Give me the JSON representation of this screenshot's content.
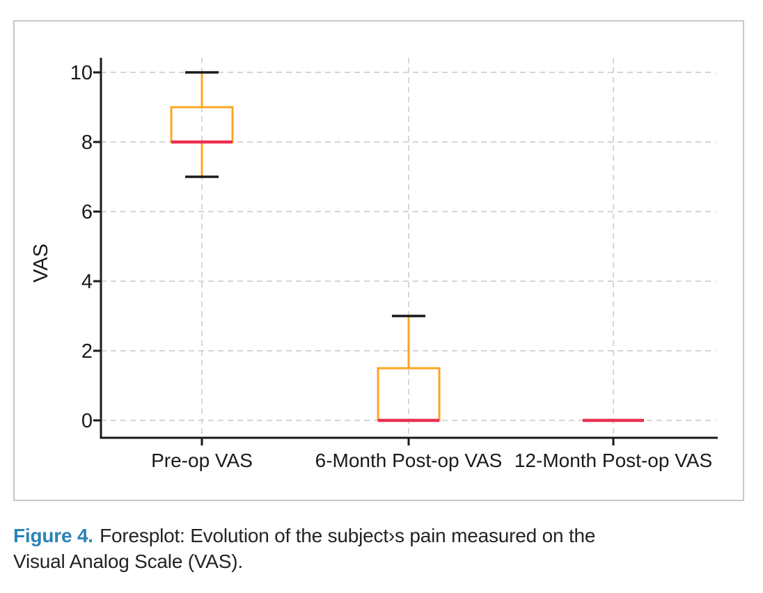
{
  "figure": {
    "caption": {
      "label": "Figure 4.",
      "line1": "Foresplot: Evolution of the subject›s pain measured on the",
      "line2": "Visual Analog Scale (VAS)."
    }
  },
  "chart_data": {
    "type": "boxplot",
    "title": "",
    "xlabel": "",
    "ylabel": "VAS",
    "yticks": [
      0,
      2,
      4,
      6,
      8,
      10
    ],
    "ylim": [
      -0.5,
      10.4
    ],
    "grid": "dashed horizontal and vertical gridlines",
    "legend": "none",
    "categories": [
      "Pre-op VAS",
      "6-Month Post-op VAS",
      "12-Month Post-op VAS"
    ],
    "series": [
      {
        "category": "Pre-op VAS",
        "whisker_low": 7,
        "q1": 8,
        "median": 8,
        "q3": 9,
        "whisker_high": 10
      },
      {
        "category": "6-Month Post-op VAS",
        "whisker_low": 0,
        "q1": 0,
        "median": 0,
        "q3": 1.5,
        "whisker_high": 3
      },
      {
        "category": "12-Month Post-op VAS",
        "whisker_low": 0,
        "q1": 0,
        "median": 0,
        "q3": 0,
        "whisker_high": 0
      }
    ],
    "colors": {
      "box": "#FFA51F",
      "median": "#EA3050",
      "whisker_cap": "#1a1a1a",
      "axis": "#1a1a1a",
      "grid": "#cfcfcf",
      "tick_text": "#1c1c1c",
      "caption_label": "#2B84B5",
      "panel_border": "#c8c8c8"
    }
  }
}
